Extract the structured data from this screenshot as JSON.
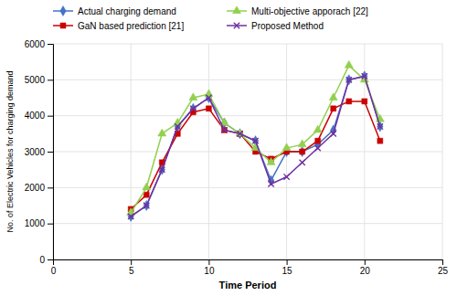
{
  "chart_data": {
    "type": "line",
    "xlabel": "Time Period",
    "ylabel": "No. of Electric Vehicles for charging demand",
    "x": [
      5,
      6,
      7,
      8,
      9,
      10,
      11,
      12,
      13,
      14,
      15,
      16,
      17,
      18,
      19,
      20,
      21
    ],
    "series": [
      {
        "name": "Actual charging demand",
        "color": "#4472C4",
        "marker": "diamond",
        "values": [
          1200,
          1500,
          2500,
          3700,
          4200,
          4500,
          3800,
          3500,
          3300,
          2200,
          3000,
          3000,
          3200,
          3600,
          5000,
          5100,
          3700
        ]
      },
      {
        "name": "GaN based prediction [21]",
        "color": "#CC0000",
        "marker": "square",
        "values": [
          1400,
          1800,
          2700,
          3500,
          4100,
          4200,
          3600,
          3500,
          3000,
          2800,
          3000,
          3000,
          3300,
          4200,
          4400,
          4400,
          3300
        ]
      },
      {
        "name": "Multi-objective apporach [22]",
        "color": "#92D050",
        "marker": "triangle",
        "values": [
          1300,
          2000,
          3500,
          3800,
          4500,
          4600,
          3800,
          3500,
          3100,
          2700,
          3100,
          3200,
          3600,
          4500,
          5400,
          5000,
          3900
        ]
      },
      {
        "name": "Proposed Method",
        "color": "#7030A0",
        "marker": "x",
        "values": [
          1200,
          1500,
          2500,
          3700,
          4200,
          4500,
          3600,
          3500,
          3300,
          2100,
          2300,
          2700,
          3100,
          3500,
          5000,
          5100,
          3700
        ]
      }
    ],
    "xlim": [
      0,
      25
    ],
    "ylim": [
      0,
      6000
    ],
    "xticks": [
      0,
      5,
      10,
      15,
      20,
      25
    ],
    "yticks": [
      0,
      1000,
      2000,
      3000,
      4000,
      5000,
      6000
    ],
    "grid": true,
    "legend": "top"
  }
}
